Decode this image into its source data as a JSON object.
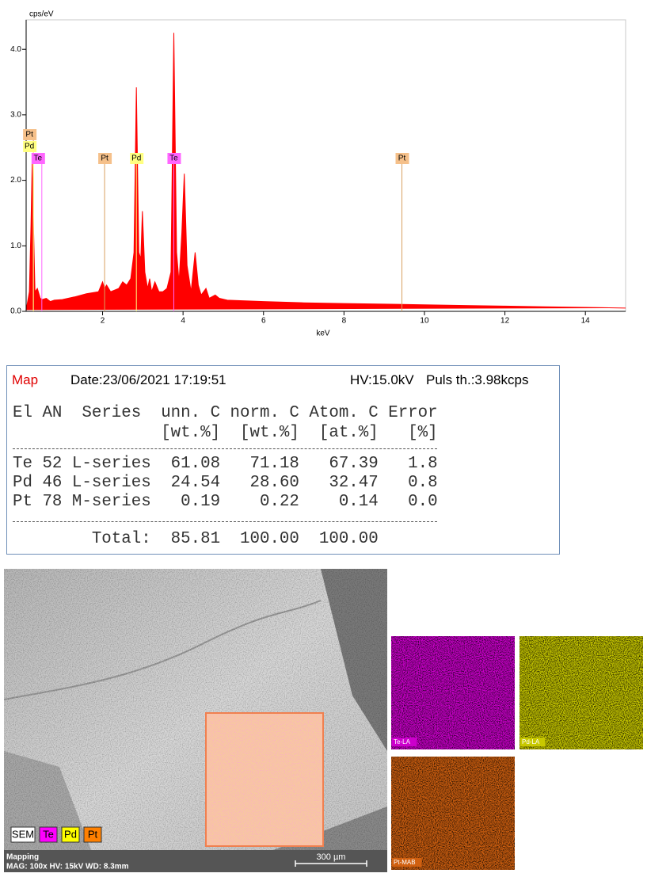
{
  "chart_data": {
    "type": "area",
    "y_label": "cps/eV",
    "x_label": "keV",
    "color": "#ff0000",
    "x": [
      0.1,
      0.18,
      0.22,
      0.25,
      0.28,
      0.32,
      0.38,
      0.45,
      0.5,
      0.6,
      0.7,
      0.8,
      1.0,
      1.3,
      1.6,
      1.9,
      2.0,
      2.05,
      2.1,
      2.2,
      2.4,
      2.5,
      2.6,
      2.7,
      2.78,
      2.84,
      2.9,
      2.95,
      2.99,
      3.05,
      3.12,
      3.17,
      3.22,
      3.3,
      3.4,
      3.5,
      3.6,
      3.7,
      3.77,
      3.84,
      3.9,
      3.97,
      4.03,
      4.1,
      4.2,
      4.3,
      4.38,
      4.45,
      4.57,
      4.65,
      4.8,
      4.9,
      5.1,
      6,
      7,
      8,
      9,
      10,
      11,
      12,
      13,
      14,
      15
    ],
    "values": [
      0.02,
      0.3,
      1.3,
      2.25,
      1.4,
      0.3,
      0.35,
      0.2,
      0.18,
      0.2,
      0.15,
      0.17,
      0.18,
      0.22,
      0.27,
      0.3,
      0.45,
      0.35,
      0.4,
      0.3,
      0.35,
      0.45,
      0.4,
      0.5,
      0.9,
      3.42,
      0.9,
      0.8,
      1.53,
      0.6,
      0.35,
      0.5,
      0.3,
      0.45,
      0.3,
      0.3,
      0.35,
      0.6,
      4.25,
      0.9,
      0.45,
      1.2,
      2.1,
      0.7,
      0.3,
      0.9,
      0.4,
      0.25,
      0.35,
      0.2,
      0.25,
      0.2,
      0.17,
      0.15,
      0.13,
      0.12,
      0.11,
      0.1,
      0.09,
      0.08,
      0.07,
      0.06,
      0.05
    ],
    "xlim": [
      0.1,
      15
    ],
    "ylim": [
      0,
      4.45
    ],
    "xticks": [
      2,
      4,
      6,
      8,
      10,
      12,
      14
    ],
    "yticks": [
      {
        "value": 0,
        "label": "0.0"
      },
      {
        "value": 1,
        "label": "1.0"
      },
      {
        "value": 2,
        "label": "2.0"
      },
      {
        "value": 3,
        "label": "3.0"
      },
      {
        "value": 4,
        "label": "4.0"
      }
    ],
    "markers": [
      {
        "label": "Pt",
        "x": 0.28,
        "color": "#f5c08a"
      },
      {
        "label": "Pd",
        "x": 0.28,
        "color": "#ffff80"
      },
      {
        "label": "Te",
        "x": 0.49,
        "color": "#ff66ff"
      },
      {
        "label": "Pt",
        "x": 2.05,
        "color": "#f5c08a"
      },
      {
        "label": "Pd",
        "x": 2.84,
        "color": "#ffff80"
      },
      {
        "label": "Te",
        "x": 3.77,
        "color": "#ff66ff"
      },
      {
        "label": "Pt",
        "x": 9.44,
        "color": "#f5c08a"
      }
    ]
  },
  "report": {
    "mode": "Map",
    "date": "Date:23/06/2021 17:19:51",
    "hv": "HV:15.0kV",
    "pulse": "Puls th.:3.98kcps",
    "columns": [
      "El",
      "AN",
      "Series",
      "unn. C",
      "norm. C",
      "Atom. C",
      "Error"
    ],
    "units": [
      "[wt.%]",
      "[wt.%]",
      "[at.%]",
      "[%]"
    ],
    "rows": [
      [
        "Te",
        "52",
        "L-series",
        "61.08",
        "71.18",
        "67.39",
        "1.8"
      ],
      [
        "Pd",
        "46",
        "L-series",
        "24.54",
        "28.60",
        "32.47",
        "0.8"
      ],
      [
        "Pt",
        "78",
        "M-series",
        "0.19",
        "0.22",
        "0.14",
        "0.0"
      ]
    ],
    "total": {
      "label": "Total:",
      "values": [
        "85.81",
        "100.00",
        "100.00"
      ]
    }
  },
  "sem": {
    "legend": [
      {
        "label": "SEM",
        "color": "#ffffff"
      },
      {
        "label": "Te",
        "color": "#ff00ff"
      },
      {
        "label": "Pd",
        "color": "#ffff00"
      },
      {
        "label": "Pt",
        "color": "#ff8000"
      }
    ],
    "title": "Mapping",
    "info": "MAG: 100x  HV: 15kV  WD: 8.3mm",
    "scale": "300 µm"
  },
  "maps": [
    {
      "label": "Te-LA",
      "color": "#cc00cc"
    },
    {
      "label": "Pd-LA",
      "color": "#c8c800"
    },
    {
      "label": "Pt-MAB",
      "color": "#d06010"
    }
  ]
}
